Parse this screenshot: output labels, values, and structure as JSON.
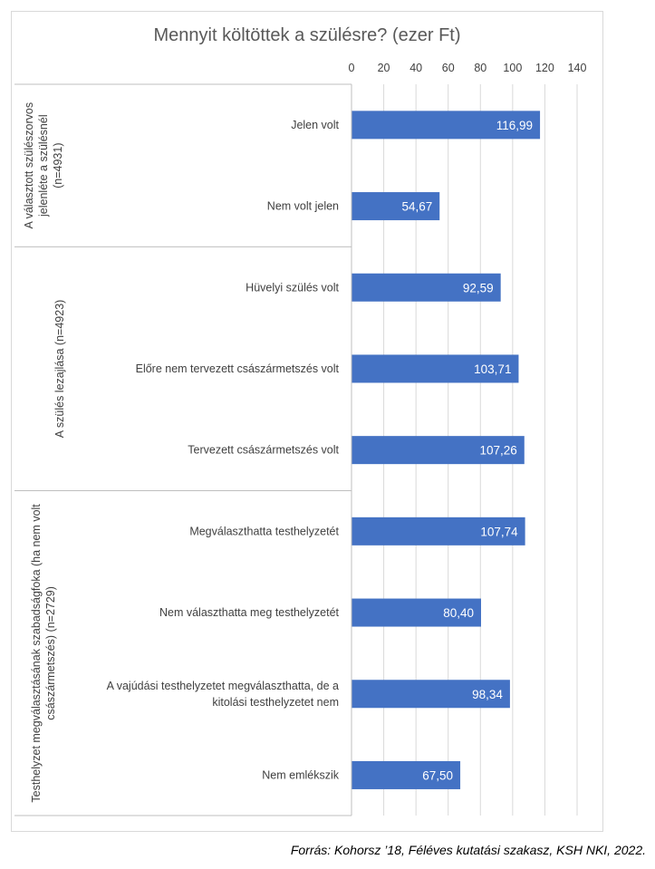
{
  "chart_data": {
    "type": "bar",
    "orientation": "horizontal",
    "title": "Mennyit költöttek a szülésre? (ezer Ft)",
    "xlim": [
      0,
      140
    ],
    "ticks": [
      0,
      20,
      40,
      60,
      80,
      100,
      120,
      140
    ],
    "tick_labels": [
      "0",
      "20",
      "40",
      "60",
      "80",
      "100",
      "120",
      "140"
    ],
    "axis_position": "top",
    "grid": true,
    "bar_color": "#4472c4",
    "groups": [
      {
        "label_lines": [
          "A választott szülészorvos",
          "jelenléte a szülésnél",
          "(n=4931)"
        ],
        "items": [
          {
            "category": [
              "Jelen volt"
            ],
            "value": 116.99,
            "value_label": "116,99"
          },
          {
            "category": [
              "Nem volt jelen"
            ],
            "value": 54.67,
            "value_label": "54,67"
          }
        ]
      },
      {
        "label_lines": [
          "A szülés lezajlása (n=4923)"
        ],
        "items": [
          {
            "category": [
              "Hüvelyi szülés volt"
            ],
            "value": 92.59,
            "value_label": "92,59"
          },
          {
            "category": [
              "Előre nem tervezett császármetszés volt"
            ],
            "value": 103.71,
            "value_label": "103,71"
          },
          {
            "category": [
              "Tervezett császármetszés volt"
            ],
            "value": 107.26,
            "value_label": "107,26"
          }
        ]
      },
      {
        "label_lines": [
          "Testhelyzet megválasztásának szabadságfoka (ha nem volt",
          "császármetszés) (n=2729)"
        ],
        "items": [
          {
            "category": [
              "Megválaszthatta testhelyzetét"
            ],
            "value": 107.74,
            "value_label": "107,74"
          },
          {
            "category": [
              "Nem választhatta meg testhelyzetét"
            ],
            "value": 80.4,
            "value_label": "80,40"
          },
          {
            "category": [
              "A vajúdási testhelyzetet megválaszthatta, de a",
              "kitolási testhelyzetet nem"
            ],
            "value": 98.34,
            "value_label": "98,34"
          },
          {
            "category": [
              "Nem emlékszik"
            ],
            "value": 67.5,
            "value_label": "67,50"
          }
        ]
      }
    ]
  },
  "source_text": "Forrás: Kohorsz ’18, Féléves kutatási szakasz, KSH NKI, 2022."
}
